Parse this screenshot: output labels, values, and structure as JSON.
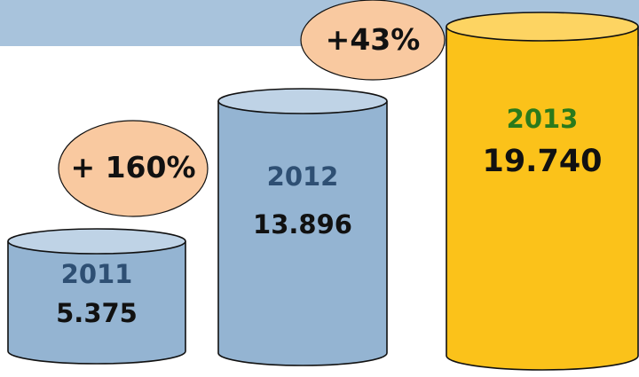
{
  "chart_data": {
    "type": "bar",
    "style": "cylinder",
    "categories": [
      "2011",
      "2012",
      "2013"
    ],
    "values": [
      5375,
      13896,
      19740
    ],
    "value_labels": [
      "5.375",
      "13.896",
      "19.740"
    ],
    "growth_labels": [
      "+ 160%",
      "+43%"
    ],
    "grid": false,
    "colors": {
      "header_band": "#a8c3dc",
      "bar_fill": "#94b4d2",
      "bar_top": "#bfd3e6",
      "bar_stroke": "#111111",
      "highlight_fill": "#fbc21a",
      "highlight_top": "#fdd462",
      "growth_bubble": "#f9c9a0",
      "year_text": "#2e4f73",
      "highlight_year_text": "#2b7a1b"
    }
  }
}
